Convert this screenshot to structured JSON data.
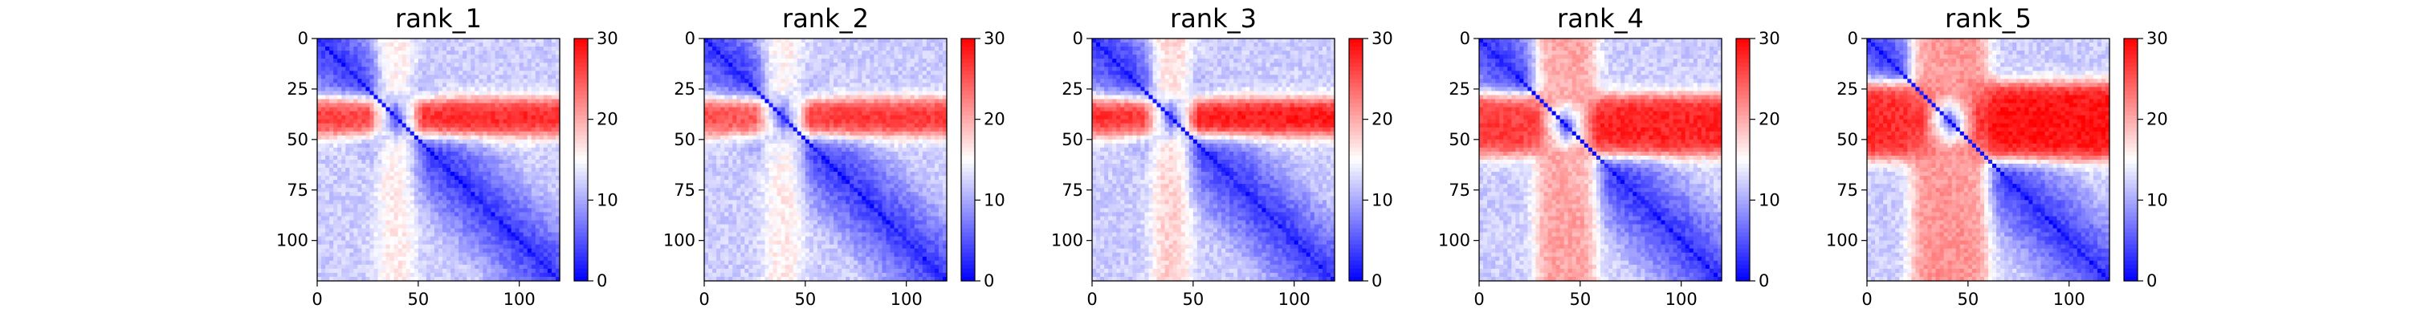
{
  "chart_data": {
    "type": "heatmap",
    "colormap": [
      "#0000ff",
      "#ffffff",
      "#ff0000"
    ],
    "colorbar": {
      "min": 0,
      "max": 30,
      "ticks": [
        0,
        10,
        20,
        30
      ]
    },
    "x_ticks": [
      0,
      50,
      100
    ],
    "y_ticks": [
      0,
      25,
      50,
      75,
      100
    ],
    "xlim": [
      0,
      120
    ],
    "ylim": [
      120,
      0
    ],
    "grid_size": 120,
    "panels": [
      {
        "title": "rank_1",
        "band": [
          30,
          48
        ],
        "band_value": 28,
        "cross_value": 17
      },
      {
        "title": "rank_2",
        "band": [
          30,
          48
        ],
        "band_value": 27,
        "cross_value": 17
      },
      {
        "title": "rank_3",
        "band": [
          30,
          48
        ],
        "band_value": 29,
        "cross_value": 19
      },
      {
        "title": "rank_4",
        "band": [
          28,
          58
        ],
        "band_value": 28,
        "cross_value": 22
      },
      {
        "title": "rank_5",
        "band": [
          22,
          60
        ],
        "band_value": 29,
        "cross_value": 23
      }
    ]
  }
}
